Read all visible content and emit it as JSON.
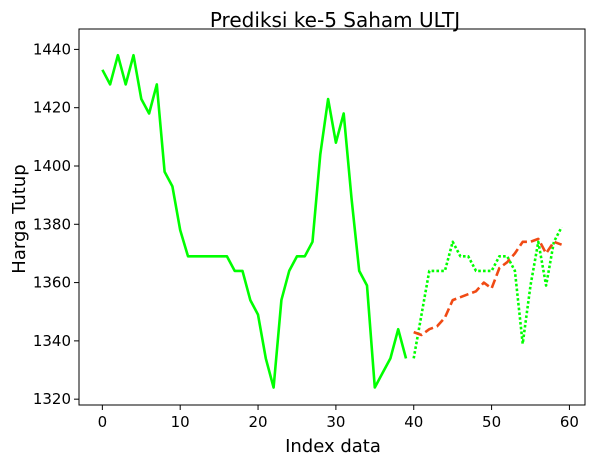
{
  "chart_data": {
    "type": "line",
    "title": "Prediksi ke-5 Saham ULTJ",
    "xlabel": "Index data",
    "ylabel": "Harga Tutup",
    "xlim": [
      -3,
      62
    ],
    "ylim": [
      1318,
      1447
    ],
    "xticks": [
      0,
      10,
      20,
      30,
      40,
      50,
      60
    ],
    "yticks": [
      1320,
      1340,
      1360,
      1380,
      1400,
      1420,
      1440
    ],
    "grid": false,
    "series": [
      {
        "style": "solid",
        "color": "#00ff00",
        "x": [
          0,
          1,
          2,
          3,
          4,
          5,
          6,
          7,
          8,
          9,
          10,
          11,
          12,
          13,
          14,
          15,
          16,
          17,
          18,
          19,
          20,
          21,
          22,
          23,
          24,
          25,
          26,
          27,
          28,
          29,
          30,
          31,
          32,
          33,
          34,
          35,
          36,
          37,
          38,
          39
        ],
        "y": [
          1433,
          1428,
          1438,
          1428,
          1438,
          1423,
          1418,
          1428,
          1398,
          1393,
          1378,
          1369,
          1369,
          1369,
          1369,
          1369,
          1369,
          1364,
          1364,
          1354,
          1349,
          1334,
          1324,
          1354,
          1364,
          1369,
          1369,
          1374,
          1404,
          1423,
          1408,
          1418,
          1389,
          1364,
          1359,
          1324,
          1329,
          1334,
          1344,
          1334
        ]
      },
      {
        "style": "dotted",
        "color": "#00ff00",
        "x": [
          40,
          41,
          42,
          43,
          44,
          45,
          46,
          47,
          48,
          49,
          50,
          51,
          52,
          53,
          54,
          55,
          56,
          57,
          58,
          59
        ],
        "y": [
          1334,
          1349,
          1364,
          1364,
          1364,
          1374,
          1369,
          1369,
          1364,
          1364,
          1364,
          1369,
          1369,
          1364,
          1339,
          1359,
          1374,
          1359,
          1374,
          1379
        ]
      },
      {
        "style": "dashed",
        "color": "#f04a14",
        "x": [
          40,
          41,
          42,
          43,
          44,
          45,
          46,
          47,
          48,
          49,
          50,
          51,
          52,
          53,
          54,
          55,
          56,
          57,
          58,
          59
        ],
        "y": [
          1343,
          1342,
          1344,
          1345,
          1348,
          1354,
          1355,
          1356,
          1357,
          1360,
          1358,
          1365,
          1367,
          1370,
          1374,
          1374,
          1375,
          1370,
          1374,
          1373
        ]
      }
    ]
  }
}
